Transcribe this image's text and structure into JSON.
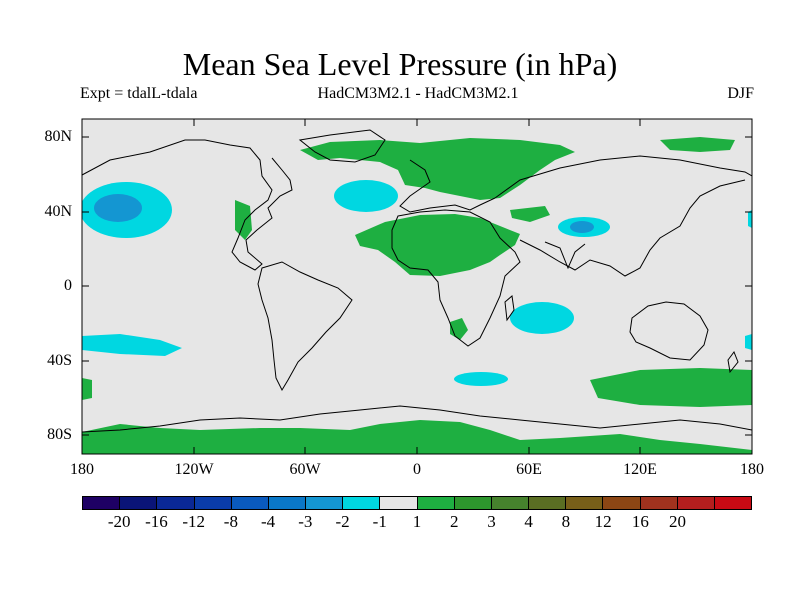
{
  "plot": {
    "title": "Mean Sea Level Pressure (in hPa)",
    "expt": "Expt = tdalL-tdala",
    "model": "HadCM3M2.1 - HadCM3M2.1",
    "season": "DJF",
    "background_color": "#e6e6e6"
  },
  "axes": {
    "lat_labels": [
      "80N",
      "40N",
      "0",
      "40S",
      "80S"
    ],
    "lon_labels": [
      "180",
      "120W",
      "60W",
      "0",
      "60E",
      "120E",
      "180"
    ]
  },
  "colorbar": {
    "colors": [
      "#1e0064",
      "#0a1478",
      "#0a2896",
      "#0a3caa",
      "#0a5abe",
      "#0a78c8",
      "#1496d2",
      "#00d7e1",
      "#e6e6e6",
      "#1eaf41",
      "#2d962d",
      "#46822d",
      "#5a6e23",
      "#785f19",
      "#8c4614",
      "#a0321e",
      "#b41e1e",
      "#c80a14"
    ],
    "labels": [
      "-20",
      "-16",
      "-12",
      "-8",
      "-4",
      "-3",
      "-2",
      "-1",
      "1",
      "2",
      "3",
      "4",
      "8",
      "12",
      "16",
      "20"
    ]
  },
  "regions": [
    {
      "name": "north-pacific-low",
      "color": "#00d7e1"
    },
    {
      "name": "north-atlantic-low",
      "color": "#00d7e1"
    },
    {
      "name": "tibet-low",
      "color": "#00d7e1"
    },
    {
      "name": "south-indian-low",
      "color": "#00d7e1"
    },
    {
      "name": "south-atlantic-low",
      "color": "#00d7e1"
    },
    {
      "name": "south-pacific-low",
      "color": "#00d7e1"
    },
    {
      "name": "eurasia-high",
      "color": "#1eaf41"
    },
    {
      "name": "north-africa-high",
      "color": "#1eaf41"
    },
    {
      "name": "southern-ocean-high",
      "color": "#1eaf41"
    },
    {
      "name": "antarctic-high",
      "color": "#1eaf41"
    }
  ]
}
